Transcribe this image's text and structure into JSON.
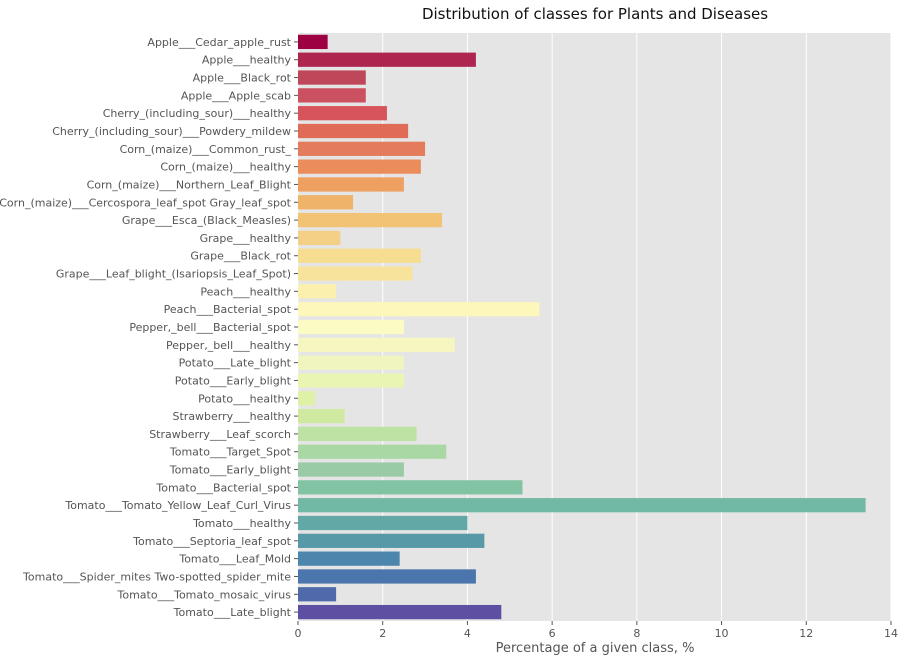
{
  "chart_data": {
    "type": "bar",
    "orientation": "horizontal",
    "title": "Distribution of classes for Plants and Diseases",
    "xlabel": "Percentage of a given class, %",
    "ylabel": "",
    "xlim": [
      0,
      14
    ],
    "xticks": [
      0,
      2,
      4,
      6,
      8,
      10,
      12,
      14
    ],
    "grid": true,
    "categories": [
      "Apple___Cedar_apple_rust",
      "Apple___healthy",
      "Apple___Black_rot",
      "Apple___Apple_scab",
      "Cherry_(including_sour)___healthy",
      "Cherry_(including_sour)___Powdery_mildew",
      "Corn_(maize)___Common_rust_",
      "Corn_(maize)___healthy",
      "Corn_(maize)___Northern_Leaf_Blight",
      "Corn_(maize)___Cercospora_leaf_spot Gray_leaf_spot",
      "Grape___Esca_(Black_Measles)",
      "Grape___healthy",
      "Grape___Black_rot",
      "Grape___Leaf_blight_(Isariopsis_Leaf_Spot)",
      "Peach___healthy",
      "Peach___Bacterial_spot",
      "Pepper,_bell___Bacterial_spot",
      "Pepper,_bell___healthy",
      "Potato___Late_blight",
      "Potato___Early_blight",
      "Potato___healthy",
      "Strawberry___healthy",
      "Strawberry___Leaf_scorch",
      "Tomato___Target_Spot",
      "Tomato___Early_blight",
      "Tomato___Bacterial_spot",
      "Tomato___Tomato_Yellow_Leaf_Curl_Virus",
      "Tomato___healthy",
      "Tomato___Septoria_leaf_spot",
      "Tomato___Leaf_Mold",
      "Tomato___Spider_mites Two-spotted_spider_mite",
      "Tomato___Tomato_mosaic_virus",
      "Tomato___Late_blight"
    ],
    "values": [
      0.7,
      4.2,
      1.6,
      1.6,
      2.1,
      2.6,
      3.0,
      2.9,
      2.5,
      1.3,
      3.4,
      1.0,
      2.9,
      2.7,
      0.9,
      5.7,
      2.5,
      3.7,
      2.5,
      2.5,
      0.4,
      1.1,
      2.8,
      3.5,
      2.5,
      5.3,
      13.4,
      4.0,
      4.4,
      2.4,
      4.2,
      0.9,
      4.8
    ],
    "colors": [
      "#9e0142",
      "#ae2550",
      "#be475a",
      "#cc5160",
      "#d8545c",
      "#e06b56",
      "#e47b5c",
      "#eb8c5b",
      "#eea060",
      "#f0b36a",
      "#f2c275",
      "#f4cf86",
      "#f7dd90",
      "#f8e39c",
      "#fbf0ae",
      "#fdf7bb",
      "#fcfbc4",
      "#f6f7c0",
      "#f0f5bf",
      "#e9f5b3",
      "#dff0a7",
      "#cfe9a0",
      "#bde2a4",
      "#aad8a5",
      "#9acba7",
      "#82c3a3",
      "#72b9a5",
      "#62a8a6",
      "#5899a7",
      "#4c86ad",
      "#4a76ad",
      "#4f69aa",
      "#5e4fa2"
    ],
    "background": "#e5e5e5"
  }
}
